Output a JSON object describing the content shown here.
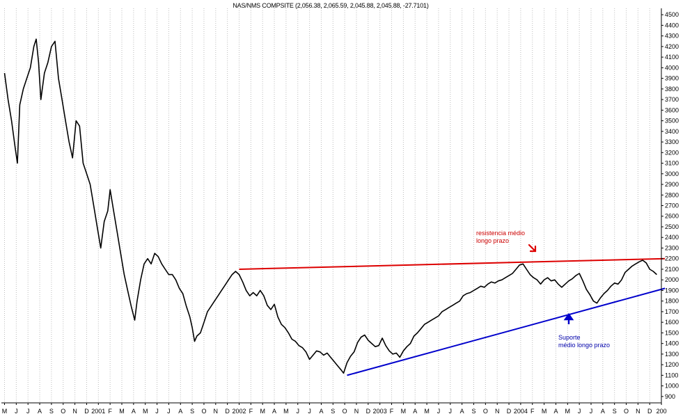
{
  "chart_data": {
    "type": "line",
    "title": "NAS/NMS COMPSITE (2,056.38, 2,065.59, 2,045.88, 2,045.88, -27.7101)",
    "y_ticks": [
      900,
      1000,
      1100,
      1200,
      1300,
      1400,
      1500,
      1600,
      1700,
      1800,
      1900,
      2000,
      2100,
      2200,
      2300,
      2400,
      2500,
      2600,
      2700,
      2800,
      2900,
      3000,
      3100,
      3200,
      3300,
      3400,
      3500,
      3600,
      3700,
      3800,
      3900,
      4000,
      4100,
      4200,
      4300,
      4400,
      4500
    ],
    "ylim": [
      840,
      4560
    ],
    "x_range": [
      0,
      56.3
    ],
    "x_ticks": [
      {
        "i": 0,
        "label": "M"
      },
      {
        "i": 1,
        "label": "J"
      },
      {
        "i": 2,
        "label": "J"
      },
      {
        "i": 3,
        "label": "A"
      },
      {
        "i": 4,
        "label": "S"
      },
      {
        "i": 5,
        "label": "O"
      },
      {
        "i": 6,
        "label": "N"
      },
      {
        "i": 7,
        "label": "D"
      },
      {
        "i": 8,
        "label": "2001"
      },
      {
        "i": 9,
        "label": "F"
      },
      {
        "i": 10,
        "label": "M"
      },
      {
        "i": 11,
        "label": "A"
      },
      {
        "i": 12,
        "label": "M"
      },
      {
        "i": 13,
        "label": "J"
      },
      {
        "i": 14,
        "label": "J"
      },
      {
        "i": 15,
        "label": "A"
      },
      {
        "i": 16,
        "label": "S"
      },
      {
        "i": 17,
        "label": "O"
      },
      {
        "i": 18,
        "label": "N"
      },
      {
        "i": 19,
        "label": "D"
      },
      {
        "i": 20,
        "label": "2002"
      },
      {
        "i": 21,
        "label": "F"
      },
      {
        "i": 22,
        "label": "M"
      },
      {
        "i": 23,
        "label": "A"
      },
      {
        "i": 24,
        "label": "M"
      },
      {
        "i": 25,
        "label": "J"
      },
      {
        "i": 26,
        "label": "J"
      },
      {
        "i": 27,
        "label": "A"
      },
      {
        "i": 28,
        "label": "S"
      },
      {
        "i": 29,
        "label": "O"
      },
      {
        "i": 30,
        "label": "N"
      },
      {
        "i": 31,
        "label": "D"
      },
      {
        "i": 32,
        "label": "2003"
      },
      {
        "i": 33,
        "label": "F"
      },
      {
        "i": 34,
        "label": "M"
      },
      {
        "i": 35,
        "label": "A"
      },
      {
        "i": 36,
        "label": "M"
      },
      {
        "i": 37,
        "label": "J"
      },
      {
        "i": 38,
        "label": "J"
      },
      {
        "i": 39,
        "label": "A"
      },
      {
        "i": 40,
        "label": "S"
      },
      {
        "i": 41,
        "label": "O"
      },
      {
        "i": 42,
        "label": "N"
      },
      {
        "i": 43,
        "label": "D"
      },
      {
        "i": 44,
        "label": "2004"
      },
      {
        "i": 45,
        "label": "F"
      },
      {
        "i": 46,
        "label": "M"
      },
      {
        "i": 47,
        "label": "A"
      },
      {
        "i": 48,
        "label": "M"
      },
      {
        "i": 49,
        "label": "J"
      },
      {
        "i": 50,
        "label": "J"
      },
      {
        "i": 51,
        "label": "A"
      },
      {
        "i": 52,
        "label": "S"
      },
      {
        "i": 53,
        "label": "O"
      },
      {
        "i": 54,
        "label": "N"
      },
      {
        "i": 55,
        "label": "D"
      },
      {
        "i": 56,
        "label": "200"
      }
    ],
    "series": [
      {
        "color": "#000000",
        "points": [
          [
            0,
            3950
          ],
          [
            0.3,
            3700
          ],
          [
            0.6,
            3500
          ],
          [
            0.9,
            3250
          ],
          [
            1.1,
            3100
          ],
          [
            1.3,
            3650
          ],
          [
            1.6,
            3800
          ],
          [
            1.9,
            3900
          ],
          [
            2.2,
            4000
          ],
          [
            2.5,
            4200
          ],
          [
            2.7,
            4270
          ],
          [
            2.9,
            4050
          ],
          [
            3.1,
            3700
          ],
          [
            3.4,
            3950
          ],
          [
            3.7,
            4050
          ],
          [
            4.0,
            4200
          ],
          [
            4.3,
            4250
          ],
          [
            4.6,
            3900
          ],
          [
            4.9,
            3700
          ],
          [
            5.2,
            3500
          ],
          [
            5.5,
            3300
          ],
          [
            5.8,
            3150
          ],
          [
            6.1,
            3500
          ],
          [
            6.4,
            3450
          ],
          [
            6.7,
            3100
          ],
          [
            7.0,
            3000
          ],
          [
            7.3,
            2900
          ],
          [
            7.6,
            2700
          ],
          [
            7.9,
            2500
          ],
          [
            8.2,
            2300
          ],
          [
            8.5,
            2550
          ],
          [
            8.8,
            2650
          ],
          [
            9.0,
            2850
          ],
          [
            9.3,
            2650
          ],
          [
            9.6,
            2450
          ],
          [
            9.9,
            2250
          ],
          [
            10.2,
            2050
          ],
          [
            10.5,
            1900
          ],
          [
            10.8,
            1750
          ],
          [
            11.1,
            1620
          ],
          [
            11.3,
            1800
          ],
          [
            11.6,
            2000
          ],
          [
            11.9,
            2150
          ],
          [
            12.2,
            2200
          ],
          [
            12.5,
            2150
          ],
          [
            12.8,
            2250
          ],
          [
            13.1,
            2220
          ],
          [
            13.4,
            2150
          ],
          [
            13.7,
            2100
          ],
          [
            14.0,
            2050
          ],
          [
            14.3,
            2050
          ],
          [
            14.6,
            2000
          ],
          [
            14.9,
            1920
          ],
          [
            15.2,
            1870
          ],
          [
            15.5,
            1750
          ],
          [
            15.8,
            1650
          ],
          [
            16.0,
            1550
          ],
          [
            16.2,
            1420
          ],
          [
            16.4,
            1470
          ],
          [
            16.7,
            1500
          ],
          [
            17.0,
            1600
          ],
          [
            17.3,
            1700
          ],
          [
            17.6,
            1750
          ],
          [
            17.9,
            1800
          ],
          [
            18.2,
            1850
          ],
          [
            18.5,
            1900
          ],
          [
            18.8,
            1950
          ],
          [
            19.1,
            2000
          ],
          [
            19.4,
            2050
          ],
          [
            19.7,
            2080
          ],
          [
            20.0,
            2050
          ],
          [
            20.3,
            1980
          ],
          [
            20.6,
            1900
          ],
          [
            20.9,
            1850
          ],
          [
            21.2,
            1880
          ],
          [
            21.5,
            1850
          ],
          [
            21.8,
            1900
          ],
          [
            22.1,
            1850
          ],
          [
            22.4,
            1760
          ],
          [
            22.7,
            1720
          ],
          [
            23.0,
            1770
          ],
          [
            23.3,
            1650
          ],
          [
            23.6,
            1580
          ],
          [
            23.9,
            1550
          ],
          [
            24.2,
            1500
          ],
          [
            24.5,
            1440
          ],
          [
            24.8,
            1420
          ],
          [
            25.1,
            1380
          ],
          [
            25.4,
            1360
          ],
          [
            25.7,
            1320
          ],
          [
            26.0,
            1250
          ],
          [
            26.3,
            1290
          ],
          [
            26.6,
            1330
          ],
          [
            26.9,
            1320
          ],
          [
            27.2,
            1290
          ],
          [
            27.5,
            1310
          ],
          [
            27.8,
            1270
          ],
          [
            28.1,
            1230
          ],
          [
            28.4,
            1190
          ],
          [
            28.7,
            1150
          ],
          [
            28.9,
            1120
          ],
          [
            29.2,
            1220
          ],
          [
            29.5,
            1280
          ],
          [
            29.8,
            1320
          ],
          [
            30.1,
            1410
          ],
          [
            30.4,
            1460
          ],
          [
            30.7,
            1480
          ],
          [
            31.0,
            1430
          ],
          [
            31.3,
            1400
          ],
          [
            31.6,
            1370
          ],
          [
            31.9,
            1380
          ],
          [
            32.2,
            1450
          ],
          [
            32.5,
            1380
          ],
          [
            32.8,
            1330
          ],
          [
            33.1,
            1300
          ],
          [
            33.4,
            1310
          ],
          [
            33.7,
            1270
          ],
          [
            34.0,
            1330
          ],
          [
            34.3,
            1370
          ],
          [
            34.6,
            1400
          ],
          [
            34.9,
            1470
          ],
          [
            35.2,
            1500
          ],
          [
            35.5,
            1540
          ],
          [
            35.8,
            1580
          ],
          [
            36.1,
            1600
          ],
          [
            36.4,
            1620
          ],
          [
            36.7,
            1640
          ],
          [
            37.0,
            1660
          ],
          [
            37.3,
            1700
          ],
          [
            37.6,
            1720
          ],
          [
            37.9,
            1740
          ],
          [
            38.2,
            1760
          ],
          [
            38.5,
            1780
          ],
          [
            38.8,
            1800
          ],
          [
            39.1,
            1850
          ],
          [
            39.4,
            1870
          ],
          [
            39.7,
            1880
          ],
          [
            40.0,
            1900
          ],
          [
            40.3,
            1920
          ],
          [
            40.6,
            1940
          ],
          [
            40.9,
            1930
          ],
          [
            41.2,
            1960
          ],
          [
            41.5,
            1980
          ],
          [
            41.8,
            1970
          ],
          [
            42.1,
            1990
          ],
          [
            42.4,
            2000
          ],
          [
            42.7,
            2020
          ],
          [
            43.0,
            2040
          ],
          [
            43.3,
            2060
          ],
          [
            43.6,
            2100
          ],
          [
            43.9,
            2140
          ],
          [
            44.2,
            2150
          ],
          [
            44.5,
            2100
          ],
          [
            44.8,
            2050
          ],
          [
            45.1,
            2020
          ],
          [
            45.4,
            2000
          ],
          [
            45.7,
            1960
          ],
          [
            46.0,
            2000
          ],
          [
            46.3,
            2020
          ],
          [
            46.6,
            1990
          ],
          [
            46.9,
            2000
          ],
          [
            47.2,
            1960
          ],
          [
            47.5,
            1930
          ],
          [
            47.8,
            1960
          ],
          [
            48.1,
            1990
          ],
          [
            48.4,
            2010
          ],
          [
            48.7,
            2040
          ],
          [
            49.0,
            2060
          ],
          [
            49.3,
            1990
          ],
          [
            49.6,
            1910
          ],
          [
            49.9,
            1860
          ],
          [
            50.2,
            1800
          ],
          [
            50.5,
            1780
          ],
          [
            50.8,
            1830
          ],
          [
            51.1,
            1870
          ],
          [
            51.4,
            1900
          ],
          [
            51.7,
            1940
          ],
          [
            52.0,
            1970
          ],
          [
            52.3,
            1960
          ],
          [
            52.6,
            2000
          ],
          [
            52.9,
            2070
          ],
          [
            53.2,
            2100
          ],
          [
            53.5,
            2130
          ],
          [
            53.8,
            2150
          ],
          [
            54.1,
            2170
          ],
          [
            54.4,
            2185
          ],
          [
            54.7,
            2160
          ],
          [
            55.0,
            2100
          ],
          [
            55.3,
            2080
          ],
          [
            55.6,
            2050
          ]
        ]
      }
    ],
    "trendlines": [
      {
        "name": "resistance",
        "color": "#dd0000",
        "from": [
          20,
          2100
        ],
        "to": [
          56.3,
          2200
        ]
      },
      {
        "name": "support",
        "color": "#0000cc",
        "from": [
          29.2,
          1100
        ],
        "to": [
          56.3,
          1920
        ]
      }
    ],
    "annotations": {
      "resistance_label": "resistencia médio\n longo prazo",
      "support_label": "Suporte\nmédio longo prazo"
    },
    "grid": "vertical-dotted"
  }
}
